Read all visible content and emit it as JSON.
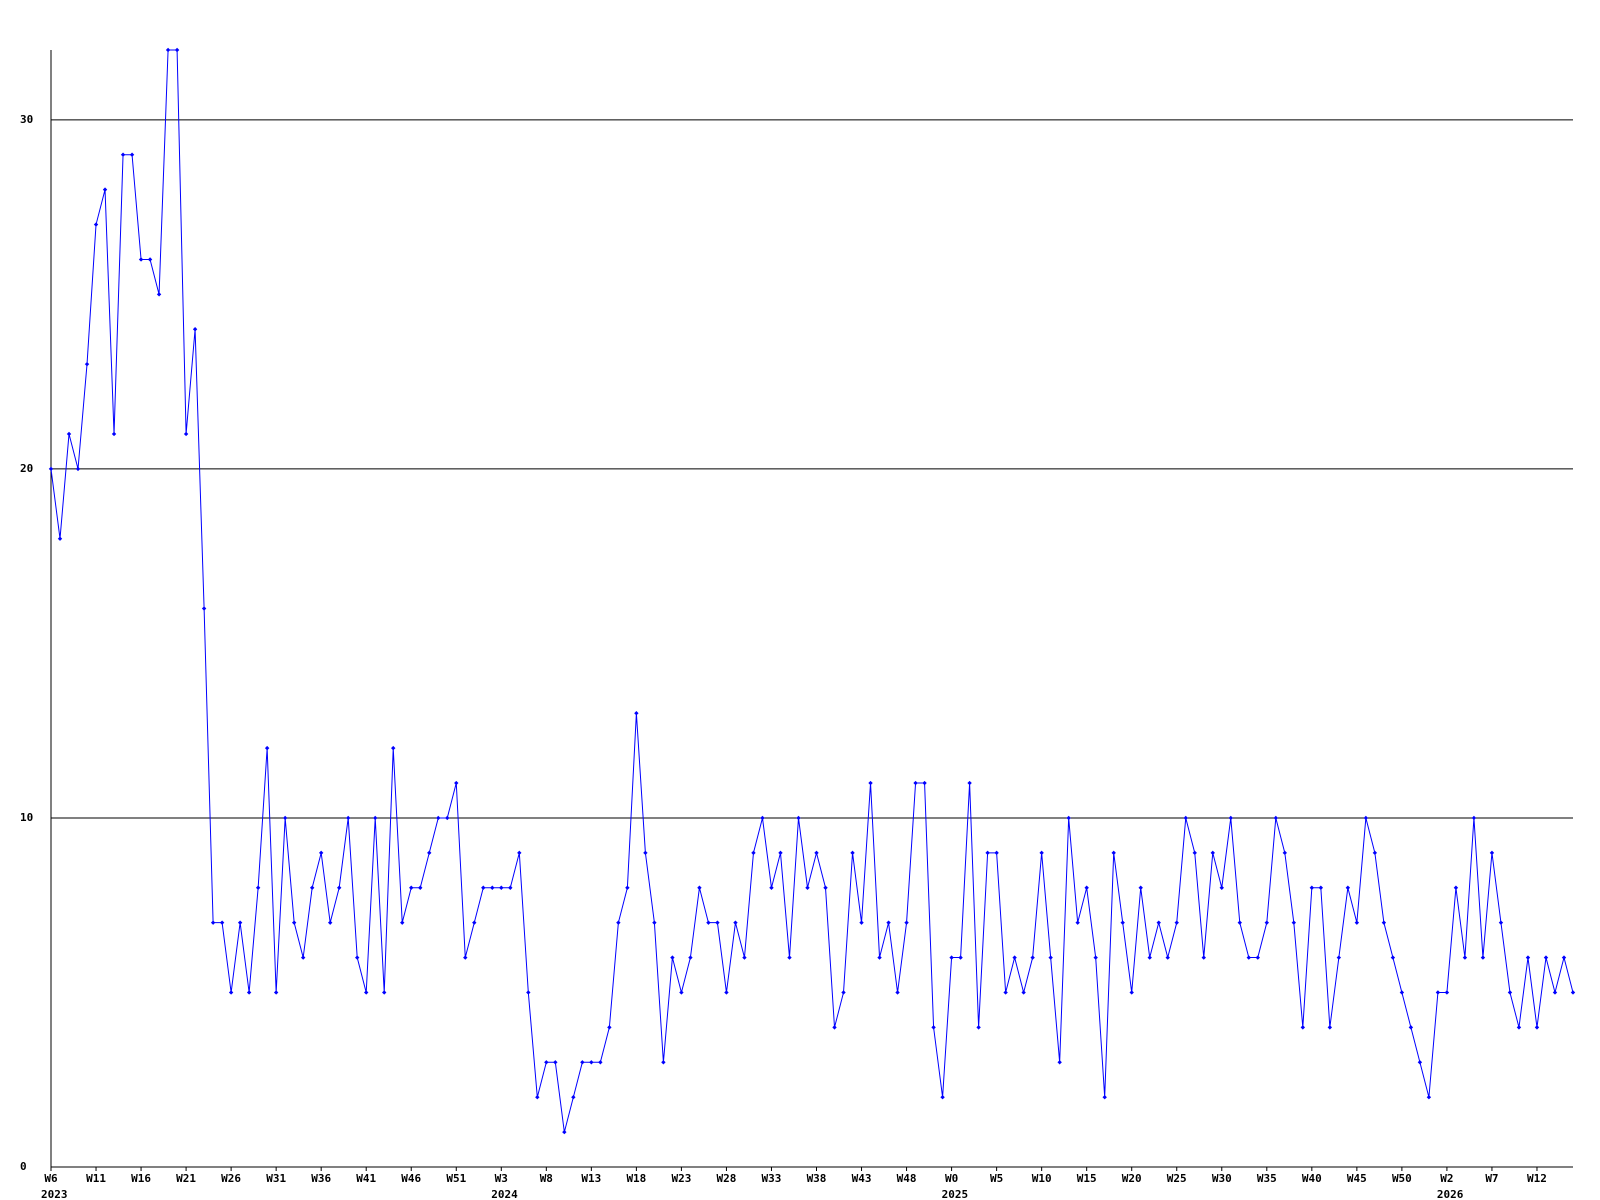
{
  "chart_data": {
    "type": "line",
    "color": "#0000ff",
    "grid": true,
    "values": [
      20,
      18,
      21,
      20,
      23,
      27,
      28,
      21,
      29,
      29,
      26,
      26,
      25,
      32,
      32,
      21,
      24,
      16,
      7,
      7,
      5,
      7,
      5,
      8,
      12,
      5,
      10,
      7,
      6,
      8,
      9,
      7,
      8,
      10,
      6,
      5,
      10,
      5,
      12,
      7,
      8,
      8,
      9,
      10,
      10,
      11,
      6,
      7,
      8,
      8,
      8,
      8,
      9,
      5,
      2,
      3,
      3,
      1,
      2,
      3,
      3,
      3,
      4,
      7,
      8,
      13,
      9,
      7,
      3,
      6,
      5,
      6,
      8,
      7,
      7,
      5,
      7,
      6,
      9,
      10,
      8,
      9,
      6,
      10,
      8,
      9,
      8,
      4,
      5,
      9,
      7,
      11,
      6,
      7,
      5,
      7,
      11,
      11,
      4,
      2,
      6,
      6,
      11,
      4,
      9,
      9,
      5,
      6,
      5,
      6,
      9,
      6,
      3,
      10,
      7,
      8,
      6,
      2,
      9,
      7,
      5,
      8,
      6,
      7,
      6,
      7,
      10,
      9,
      6,
      9,
      8,
      10,
      7,
      6,
      6,
      7,
      10,
      9,
      7,
      4,
      8,
      8,
      4,
      6,
      8,
      7,
      10,
      9,
      7,
      6,
      5,
      4,
      3,
      2,
      5,
      5,
      8,
      6,
      10,
      6,
      9,
      7,
      5,
      4,
      6,
      4,
      6,
      5,
      6,
      5
    ],
    "xlim": [
      0,
      169
    ],
    "xticks": [
      {
        "value": 0,
        "label": "W6"
      },
      {
        "value": 5,
        "label": "W11"
      },
      {
        "value": 10,
        "label": "W16"
      },
      {
        "value": 15,
        "label": "W21"
      },
      {
        "value": 20,
        "label": "W26"
      },
      {
        "value": 25,
        "label": "W31"
      },
      {
        "value": 30,
        "label": "W36"
      },
      {
        "value": 35,
        "label": "W41"
      },
      {
        "value": 40,
        "label": "W46"
      },
      {
        "value": 45,
        "label": "W51"
      },
      {
        "value": 50,
        "label": "W3"
      },
      {
        "value": 55,
        "label": "W8"
      },
      {
        "value": 60,
        "label": "W13"
      },
      {
        "value": 65,
        "label": "W18"
      },
      {
        "value": 70,
        "label": "W23"
      },
      {
        "value": 75,
        "label": "W28"
      },
      {
        "value": 80,
        "label": "W33"
      },
      {
        "value": 85,
        "label": "W38"
      },
      {
        "value": 90,
        "label": "W43"
      },
      {
        "value": 95,
        "label": "W48"
      },
      {
        "value": 100,
        "label": "W0"
      },
      {
        "value": 105,
        "label": "W5"
      },
      {
        "value": 110,
        "label": "W10"
      },
      {
        "value": 115,
        "label": "W15"
      },
      {
        "value": 120,
        "label": "W20"
      },
      {
        "value": 125,
        "label": "W25"
      },
      {
        "value": 130,
        "label": "W30"
      },
      {
        "value": 135,
        "label": "W35"
      },
      {
        "value": 140,
        "label": "W40"
      },
      {
        "value": 145,
        "label": "W45"
      },
      {
        "value": 150,
        "label": "W50"
      },
      {
        "value": 155,
        "label": "W2"
      },
      {
        "value": 160,
        "label": "W7"
      },
      {
        "value": 165,
        "label": "W12"
      }
    ],
    "year_labels": [
      {
        "value": 0,
        "label": "2023"
      },
      {
        "value": 50,
        "label": "2024"
      },
      {
        "value": 100,
        "label": "2025"
      },
      {
        "value": 155,
        "label": "2026"
      }
    ],
    "ylim": [
      0,
      32
    ],
    "yticks": [
      0,
      10,
      20,
      30
    ]
  }
}
